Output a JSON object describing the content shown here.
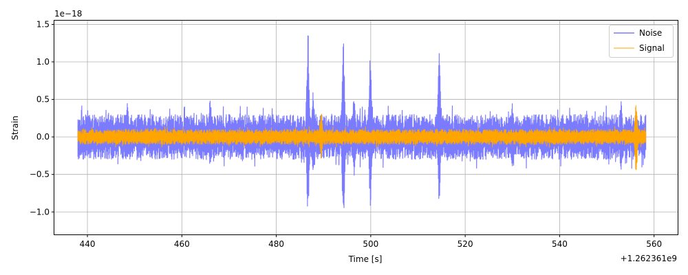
{
  "chart_data": {
    "type": "line",
    "title": "",
    "xlabel": "Time [s]",
    "ylabel": "Strain",
    "x_offset_label": "+1.262361e9",
    "y_scale_label": "1e−18",
    "xlim": [
      433,
      565
    ],
    "ylim": [
      -1.3,
      1.55
    ],
    "xticks": [
      440,
      460,
      480,
      500,
      520,
      540,
      560
    ],
    "yticks": [
      -1.0,
      -0.5,
      0.0,
      0.5,
      1.0,
      1.5
    ],
    "xtick_labels": [
      "440",
      "460",
      "480",
      "500",
      "520",
      "540",
      "560"
    ],
    "ytick_labels": [
      "−1.0",
      "−0.5",
      "0.0",
      "0.5",
      "1.0",
      "1.5"
    ],
    "grid": true,
    "legend_position": "top-right",
    "x_range": [
      438,
      558.3
    ],
    "series": [
      {
        "name": "Noise",
        "color": "#7b7bff",
        "typical_amplitude": 0.3,
        "peaks": [
          {
            "x": 448.5,
            "max": 0.49,
            "min": -0.3
          },
          {
            "x": 466,
            "max": 0.55,
            "min": -0.42
          },
          {
            "x": 486.7,
            "max": 1.42,
            "min": -1.02
          },
          {
            "x": 487.8,
            "max": 0.6,
            "min": -0.5
          },
          {
            "x": 494.2,
            "max": 1.3,
            "min": -1.17
          },
          {
            "x": 496.5,
            "max": 0.6,
            "min": -0.55
          },
          {
            "x": 499.9,
            "max": 1.07,
            "min": -0.94
          },
          {
            "x": 514.5,
            "max": 1.17,
            "min": -0.88
          },
          {
            "x": 530,
            "max": 0.45,
            "min": -0.45
          },
          {
            "x": 553,
            "max": 0.5,
            "min": -0.45
          }
        ]
      },
      {
        "name": "Signal",
        "color": "#ffa500",
        "typical_amplitude": 0.1,
        "peaks": [
          {
            "x": 489.5,
            "max": 0.34,
            "min": -0.3
          },
          {
            "x": 556.2,
            "max": 0.45,
            "min": -0.48
          }
        ]
      }
    ]
  }
}
